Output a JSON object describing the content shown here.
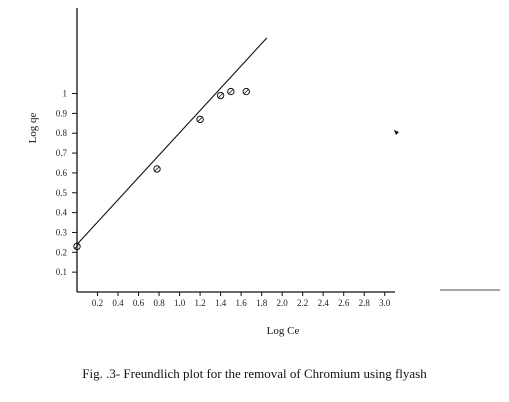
{
  "chart_data": {
    "type": "scatter",
    "title": "",
    "xlabel": "Log Ce",
    "ylabel": "Log qe",
    "caption": "Fig. .3- Freundlich plot for the removal of Chromium using flyash",
    "x_ticks": [
      "0.2",
      "0.4",
      "0.6",
      "0.8",
      "1.0",
      "1.2",
      "1.4",
      "1.6",
      "1.8",
      "2.0",
      "2.2",
      "2.4",
      "2.6",
      "2.8",
      "3.0"
    ],
    "y_ticks": [
      "0.1",
      "0.2",
      "0.3",
      "0.4",
      "0.5",
      "0.6",
      "0.7",
      "0.8",
      "0.9",
      "1"
    ],
    "xlim": [
      0,
      3.1
    ],
    "ylim": [
      0,
      1.3
    ],
    "grid": false,
    "legend": "none",
    "series": [
      {
        "points": [
          {
            "x": 0.0,
            "y": 0.23
          },
          {
            "x": 0.78,
            "y": 0.62
          },
          {
            "x": 1.2,
            "y": 0.87
          },
          {
            "x": 1.4,
            "y": 0.99
          },
          {
            "x": 1.5,
            "y": 1.01
          },
          {
            "x": 1.65,
            "y": 1.01
          }
        ]
      }
    ],
    "fit_line": {
      "x_start": 0.0,
      "y_start": 0.24,
      "x_end": 1.85,
      "y_end": 1.28
    },
    "colors": {
      "ink": "#111111"
    }
  }
}
